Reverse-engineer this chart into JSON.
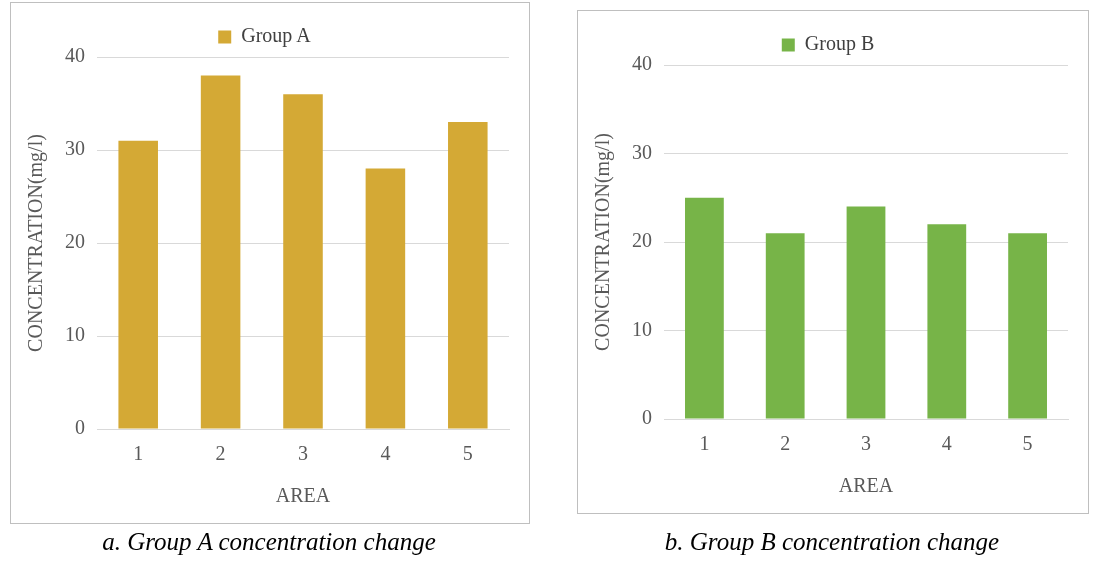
{
  "chart_data": [
    {
      "type": "bar",
      "categories": [
        "1",
        "2",
        "3",
        "4",
        "5"
      ],
      "series": [
        {
          "name": "Group A",
          "color": "#d4a935",
          "values": [
            31,
            38,
            36,
            28,
            33
          ]
        }
      ],
      "xlabel": "AREA",
      "ylabel": "CONCENTRATION(mg/l)",
      "ylim": [
        0,
        40
      ],
      "yticks": [
        0,
        10,
        20,
        30,
        40
      ],
      "grid": "y",
      "legend": "top",
      "annotations": [
        "a. Group A concentration change"
      ]
    },
    {
      "type": "bar",
      "categories": [
        "1",
        "2",
        "3",
        "4",
        "5"
      ],
      "series": [
        {
          "name": "Group B",
          "color": "#77b448",
          "values": [
            25,
            21,
            24,
            22,
            21
          ]
        }
      ],
      "xlabel": "AREA",
      "ylabel": "CONCENTRATION(mg/l)",
      "ylim": [
        0,
        40
      ],
      "yticks": [
        0,
        10,
        20,
        30,
        40
      ],
      "grid": "y",
      "legend": "top",
      "annotations": [
        "b. Group B concentration change"
      ]
    }
  ]
}
